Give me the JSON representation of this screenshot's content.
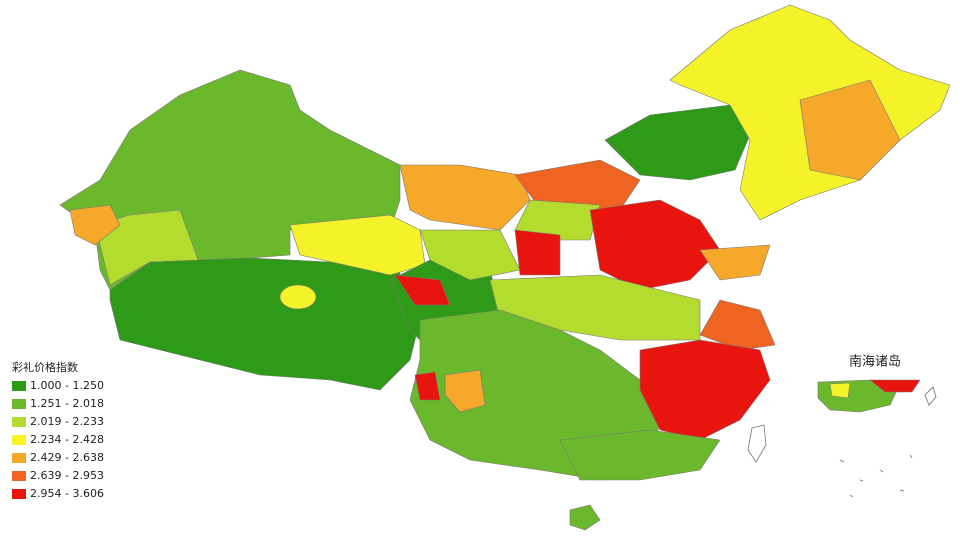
{
  "legend": {
    "title": "彩礼价格指数",
    "classes": [
      {
        "label": "1.000 - 1.250",
        "color": "#2f9a18"
      },
      {
        "label": "1.251 - 2.018",
        "color": "#6cb82c"
      },
      {
        "label": "2.019 - 2.233",
        "color": "#b3dc2f"
      },
      {
        "label": "2.234 - 2.428",
        "color": "#f4f32a"
      },
      {
        "label": "2.429 - 2.638",
        "color": "#f5a82a"
      },
      {
        "label": "2.639 - 2.953",
        "color": "#ef6420"
      },
      {
        "label": "2.954 - 3.606",
        "color": "#e8150f"
      }
    ]
  },
  "inset": {
    "title": "南海诸岛"
  }
}
